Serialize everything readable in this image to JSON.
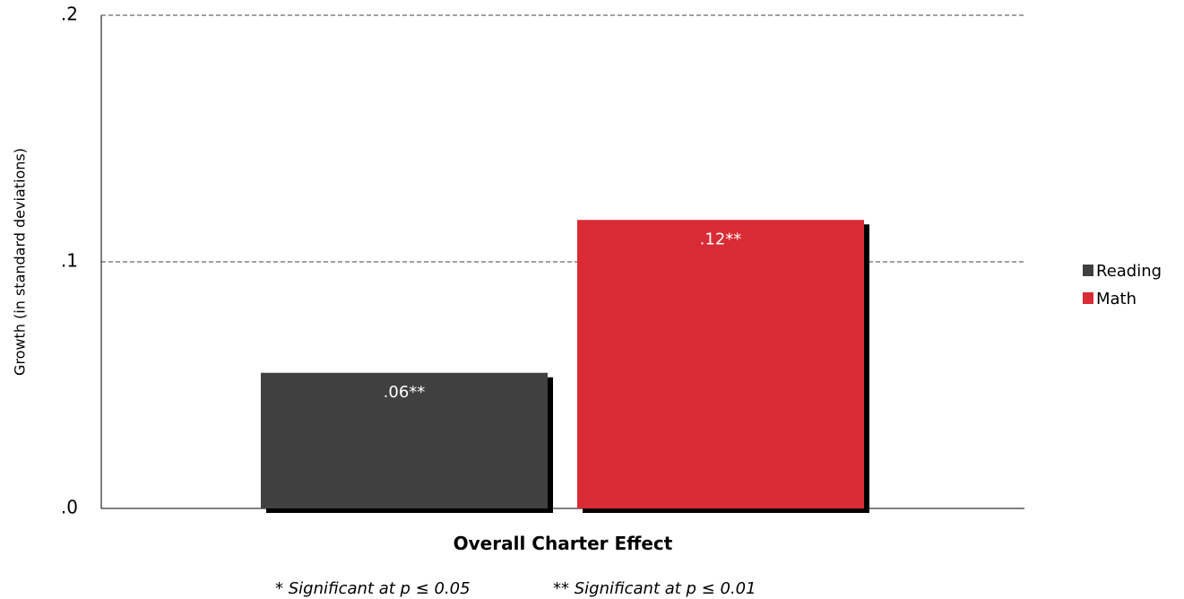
{
  "chart_data": {
    "type": "bar",
    "categories": [
      "Overall Charter Effect"
    ],
    "series": [
      {
        "name": "Reading",
        "values": [
          0.055
        ],
        "label": ".06**",
        "color": "#404040"
      },
      {
        "name": "Math",
        "values": [
          0.117
        ],
        "label": ".12**",
        "color": "#d92b35"
      }
    ],
    "title": "",
    "xlabel": "Overall Charter Effect",
    "ylabel": "Growth (in standard deviations)",
    "ylim": [
      0,
      0.2
    ],
    "yticks": [
      0,
      0.1,
      0.2
    ],
    "ytick_labels": [
      ".0",
      ".1",
      ".2"
    ],
    "grid": "horizontal dashed",
    "legend": "right",
    "footnotes": [
      "* Significant at p ≤ 0.05",
      "** Significant at p ≤ 0.01"
    ]
  }
}
